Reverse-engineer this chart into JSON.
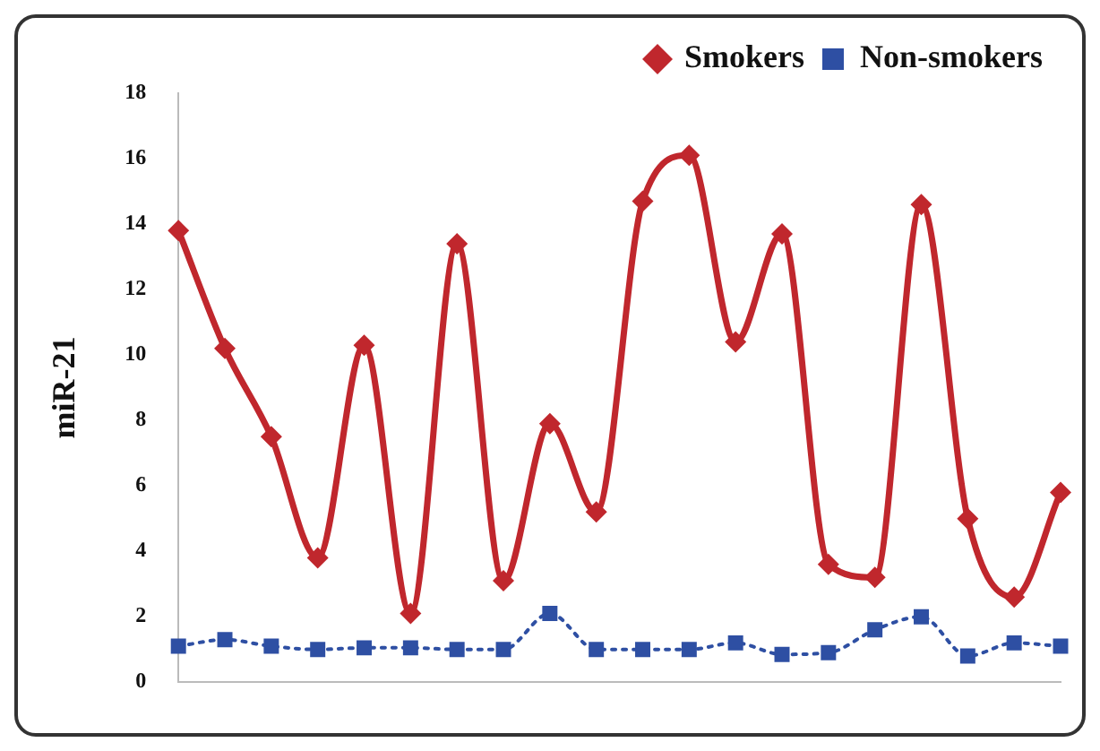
{
  "chart_data": {
    "type": "line",
    "ylabel": "miR-21",
    "categories": [
      null,
      null,
      null,
      null,
      null,
      null,
      null,
      null,
      null,
      null,
      null,
      null,
      null,
      null,
      null,
      null,
      null,
      null,
      null,
      null
    ],
    "series": [
      {
        "name": "Smokers",
        "color": "#c0272d",
        "marker": "diamond",
        "line_style": "solid",
        "values": [
          13.8,
          10.2,
          7.5,
          3.8,
          10.3,
          2.1,
          13.4,
          3.1,
          7.9,
          5.2,
          14.7,
          16.1,
          10.4,
          13.7,
          3.6,
          3.2,
          14.6,
          5.0,
          2.6,
          5.8
        ]
      },
      {
        "name": "Non-smokers",
        "color": "#2e4fa3",
        "marker": "square",
        "line_style": "dotted",
        "values": [
          1.1,
          1.3,
          1.1,
          1.0,
          1.05,
          1.05,
          1.0,
          1.0,
          2.1,
          1.0,
          1.0,
          1.0,
          1.2,
          0.85,
          0.9,
          1.6,
          2.0,
          0.8,
          1.2,
          1.1
        ]
      }
    ],
    "ylim": [
      0,
      18
    ],
    "yticks": [
      0,
      2,
      4,
      6,
      8,
      10,
      12,
      14,
      16,
      18
    ],
    "grid": false,
    "legend": "top right"
  }
}
